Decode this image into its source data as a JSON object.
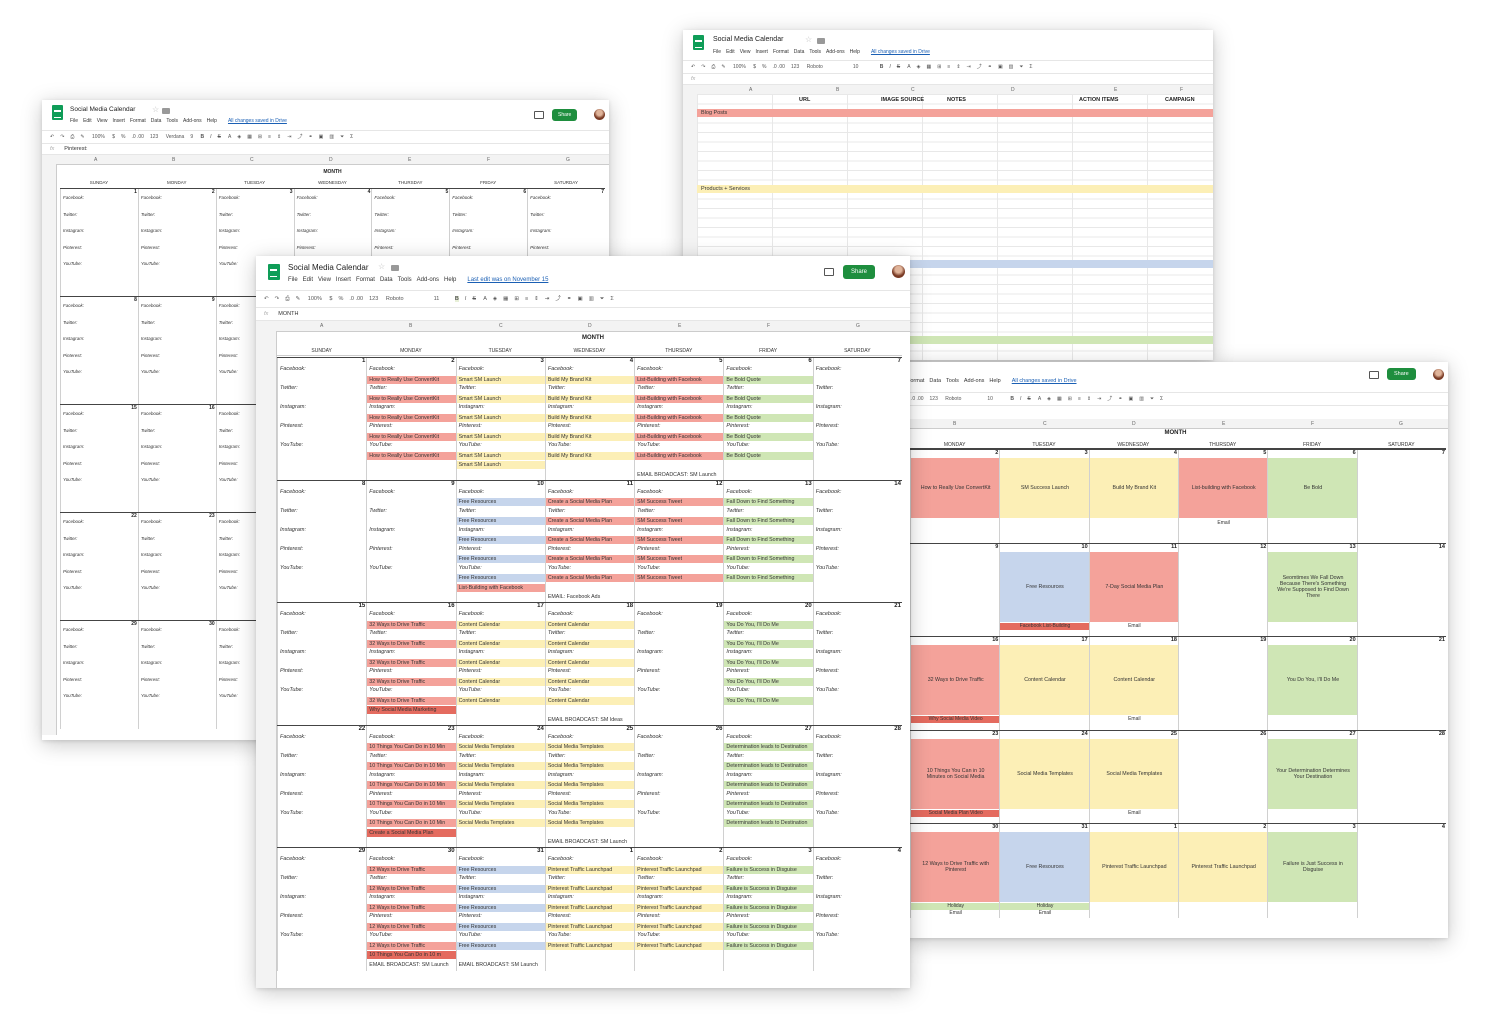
{
  "app": {
    "title": "Social Media Calendar",
    "share": "Share"
  },
  "menus": [
    "File",
    "Edit",
    "View",
    "Insert",
    "Format",
    "Data",
    "Tools",
    "Add-ons",
    "Help"
  ],
  "saved_text": "All changes saved in Drive",
  "last_edit": "Last edit was on November 15",
  "toolbar": {
    "zoom": "100%",
    "currency": "$",
    "percent": "%",
    "decimals": ".0 .00",
    "format": "123",
    "font_ventana": "Verdana",
    "font_roboto": "Roboto",
    "size9": "9",
    "size10": "10",
    "size11": "11",
    "bold": "B",
    "italic": "I",
    "strike": "S",
    "sigma": "Σ"
  },
  "fx_label": "fx",
  "formula_pinterest": "Pinterest:",
  "formula_month": "MONTH",
  "month": "MONTH",
  "days": [
    "SUNDAY",
    "MONDAY",
    "TUESDAY",
    "WEDNESDAY",
    "THURSDAY",
    "FRIDAY",
    "SATURDAY"
  ],
  "days_mon_sat": [
    "MONDAY",
    "TUESDAY",
    "WEDNESDAY",
    "THURSDAY",
    "FRIDAY",
    "SATURDAY"
  ],
  "col_letters": [
    "A",
    "B",
    "C",
    "D",
    "E",
    "F",
    "G"
  ],
  "platforms": [
    "Facebook:",
    "Twitter:",
    "Instagram:",
    "Pinterest:",
    "YouTube:"
  ],
  "sheet2": {
    "columns": [
      "URL",
      "IMAGE SOURCE",
      "NOTES",
      "ACTION ITEMS",
      "CAMPAIGN"
    ],
    "row2": "Blog Posts",
    "row8": "Products + Services"
  },
  "cal": {
    "w1": {
      "nums": [
        "1",
        "2",
        "3",
        "4",
        "5",
        "6",
        "7"
      ],
      "mon": "How to Really Use ConvertKit",
      "tue": "Smart SM Launch",
      "wed": "Build My Brand Kit",
      "thu": "List-Building with Facebook",
      "fri": "Be Bold Quote",
      "email": "EMAIL BROADCAST: SM Launch"
    },
    "w2": {
      "nums": [
        "8",
        "9",
        "10",
        "11",
        "12",
        "13",
        "14"
      ],
      "tue": "Free Resources",
      "tue_extra": "List-Building with Facebook",
      "wed": "Create a Social Media Plan",
      "thu": "SM Success Tweet",
      "fri": "Fall Down to Find Something",
      "email": "EMAIL: Facebook Ads"
    },
    "w3": {
      "nums": [
        "15",
        "16",
        "17",
        "18",
        "19",
        "20",
        "21"
      ],
      "mon": "32 Ways to Drive Traffic",
      "mon_extra": "Why Social Media Marketing",
      "tue": "Content Calendar",
      "wed": "Content Calendar",
      "fri": "You Do You, I'll Do Me",
      "email": "EMAIL BROADCAST: SM Ideas"
    },
    "w4": {
      "nums": [
        "22",
        "23",
        "24",
        "25",
        "26",
        "27",
        "28"
      ],
      "mon": "10 Things You Can Do in 10 Min",
      "mon_extra": "Create a Social Media Plan",
      "tue": "Social Media Templates",
      "wed": "Social Media Templates",
      "fri": "Determination leads to Destination",
      "email": "EMAIL BROADCAST: SM Launch"
    },
    "w5": {
      "nums": [
        "29",
        "30",
        "31",
        "1",
        "2",
        "3",
        "4"
      ],
      "mon": "12 Ways to Drive Traffic",
      "mon_extra": "10 Things You Can Do in 10 m",
      "tue": "Free Resources",
      "wed": "Pinterest Traffic Launchpad",
      "thu": "Pinterest Traffic Launchpad",
      "fri": "Failure is Success in Disguise",
      "email_mon": "EMAIL BROADCAST: SM Launch",
      "email_tue": "EMAIL BROADCAST: SM Launch"
    }
  },
  "right": {
    "w1": {
      "nums": [
        "2",
        "3",
        "4",
        "5",
        "6",
        "7"
      ],
      "items": [
        "How to Really Use ConvertKit",
        "SM Success Launch",
        "Build My Brand Kit",
        "List-building with Facebook",
        "Be Bold",
        ""
      ],
      "strip": "Email"
    },
    "w2": {
      "nums": [
        "9",
        "10",
        "11",
        "12",
        "13",
        "14"
      ],
      "tue": "Free Resources",
      "tue_strip": "Facebook List-Building",
      "wed": "7-Day Social Media Plan",
      "wed_strip": "Email",
      "fri": "Seomtimes We Fall Down Because There's Something We're Supposed to Find Down There"
    },
    "w3": {
      "nums": [
        "16",
        "17",
        "18",
        "19",
        "20",
        "21"
      ],
      "mon": "32 Ways to Drive Traffic",
      "mon_strip": "Why Social Media Video",
      "tue": "Content Calendar",
      "wed": "Content Calendar",
      "wed_strip": "Email",
      "fri": "You Do You, I'll Do Me"
    },
    "w4": {
      "nums": [
        "23",
        "24",
        "25",
        "26",
        "27",
        "28"
      ],
      "mon": "10 Things You Can in 10 Minutes on Social Media",
      "mon_strip": "Social Media Plan Video",
      "tue": "Social Media Templates",
      "wed": "Social Media Templates",
      "wed_strip": "Email",
      "fri": "Your Determination Determines Your Destination"
    },
    "w5": {
      "nums": [
        "30",
        "31",
        "1",
        "2",
        "3",
        "4"
      ],
      "mon": "12 Ways to Drive Traffic with Pinterest",
      "tue": "Free Resources",
      "wed": "Pinterest Traffic Launchpad",
      "thu": "Pinterest Traffic Launchpad",
      "fri": "Failure is Just Success in Disguise",
      "holiday": "Holiday",
      "email": "Email"
    }
  }
}
